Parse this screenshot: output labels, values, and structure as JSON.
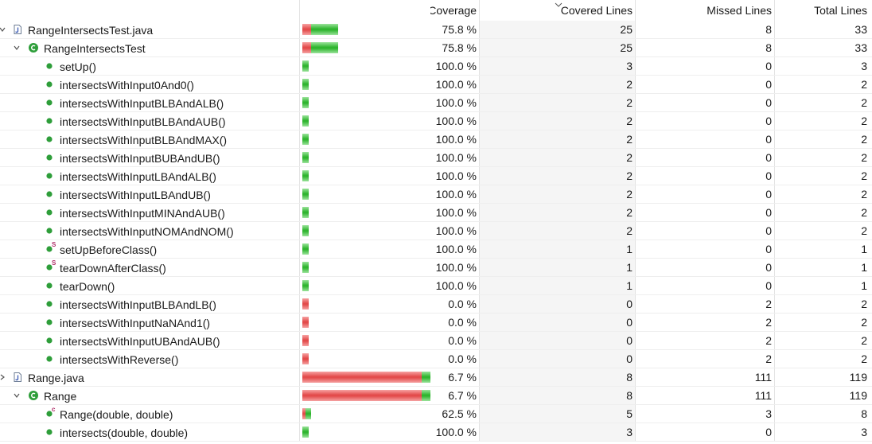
{
  "header": {
    "coverage_label": "Coverage",
    "covered_label": "Covered Lines",
    "missed_label": "Missed Lines",
    "total_label": "Total Lines",
    "sorted_column": "Covered Lines",
    "sort_icon": "chevron-down-icon"
  },
  "colors": {
    "covered": "#2fb52f",
    "missed": "#e34b4b",
    "method_icon": "#2e9e3a",
    "class_icon": "#2e9e3a"
  },
  "rows": [
    {
      "name": "RangeIntersectsTest.java",
      "kind": "file",
      "depth": 0,
      "expanded": true,
      "bar_units": 33,
      "coverage": 0.758,
      "coverage_text": "75.8 %",
      "covered": "25",
      "missed": "8",
      "total": "33"
    },
    {
      "name": "RangeIntersectsTest",
      "kind": "class",
      "depth": 1,
      "expanded": true,
      "bar_units": 33,
      "coverage": 0.758,
      "coverage_text": "75.8 %",
      "covered": "25",
      "missed": "8",
      "total": "33"
    },
    {
      "name": "setUp()",
      "kind": "method",
      "depth": 2,
      "bar_units": 3,
      "coverage": 1.0,
      "coverage_text": "100.0 %",
      "covered": "3",
      "missed": "0",
      "total": "3"
    },
    {
      "name": "intersectsWithInput0And0()",
      "kind": "method",
      "depth": 2,
      "bar_units": 2,
      "coverage": 1.0,
      "coverage_text": "100.0 %",
      "covered": "2",
      "missed": "0",
      "total": "2"
    },
    {
      "name": "intersectsWithInputBLBAndALB()",
      "kind": "method",
      "depth": 2,
      "bar_units": 2,
      "coverage": 1.0,
      "coverage_text": "100.0 %",
      "covered": "2",
      "missed": "0",
      "total": "2"
    },
    {
      "name": "intersectsWithInputBLBAndAUB()",
      "kind": "method",
      "depth": 2,
      "bar_units": 2,
      "coverage": 1.0,
      "coverage_text": "100.0 %",
      "covered": "2",
      "missed": "0",
      "total": "2"
    },
    {
      "name": "intersectsWithInputBLBAndMAX()",
      "kind": "method",
      "depth": 2,
      "bar_units": 2,
      "coverage": 1.0,
      "coverage_text": "100.0 %",
      "covered": "2",
      "missed": "0",
      "total": "2"
    },
    {
      "name": "intersectsWithInputBUBAndUB()",
      "kind": "method",
      "depth": 2,
      "bar_units": 2,
      "coverage": 1.0,
      "coverage_text": "100.0 %",
      "covered": "2",
      "missed": "0",
      "total": "2"
    },
    {
      "name": "intersectsWithInputLBAndALB()",
      "kind": "method",
      "depth": 2,
      "bar_units": 2,
      "coverage": 1.0,
      "coverage_text": "100.0 %",
      "covered": "2",
      "missed": "0",
      "total": "2"
    },
    {
      "name": "intersectsWithInputLBAndUB()",
      "kind": "method",
      "depth": 2,
      "bar_units": 2,
      "coverage": 1.0,
      "coverage_text": "100.0 %",
      "covered": "2",
      "missed": "0",
      "total": "2"
    },
    {
      "name": "intersectsWithInputMINAndAUB()",
      "kind": "method",
      "depth": 2,
      "bar_units": 2,
      "coverage": 1.0,
      "coverage_text": "100.0 %",
      "covered": "2",
      "missed": "0",
      "total": "2"
    },
    {
      "name": "intersectsWithInputNOMAndNOM()",
      "kind": "method",
      "depth": 2,
      "bar_units": 2,
      "coverage": 1.0,
      "coverage_text": "100.0 %",
      "covered": "2",
      "missed": "0",
      "total": "2"
    },
    {
      "name": "setUpBeforeClass()",
      "kind": "static_method",
      "depth": 2,
      "bar_units": 1,
      "coverage": 1.0,
      "coverage_text": "100.0 %",
      "covered": "1",
      "missed": "0",
      "total": "1"
    },
    {
      "name": "tearDownAfterClass()",
      "kind": "static_method",
      "depth": 2,
      "bar_units": 1,
      "coverage": 1.0,
      "coverage_text": "100.0 %",
      "covered": "1",
      "missed": "0",
      "total": "1"
    },
    {
      "name": "tearDown()",
      "kind": "method",
      "depth": 2,
      "bar_units": 1,
      "coverage": 1.0,
      "coverage_text": "100.0 %",
      "covered": "1",
      "missed": "0",
      "total": "1"
    },
    {
      "name": "intersectsWithInputBLBAndLB()",
      "kind": "method",
      "depth": 2,
      "bar_units": 2,
      "coverage": 0.0,
      "coverage_text": "0.0 %",
      "covered": "0",
      "missed": "2",
      "total": "2"
    },
    {
      "name": "intersectsWithInputNaNAnd1()",
      "kind": "method",
      "depth": 2,
      "bar_units": 2,
      "coverage": 0.0,
      "coverage_text": "0.0 %",
      "covered": "0",
      "missed": "2",
      "total": "2"
    },
    {
      "name": "intersectsWithInputUBAndAUB()",
      "kind": "method",
      "depth": 2,
      "bar_units": 2,
      "coverage": 0.0,
      "coverage_text": "0.0 %",
      "covered": "0",
      "missed": "2",
      "total": "2"
    },
    {
      "name": "intersectsWithReverse()",
      "kind": "method",
      "depth": 2,
      "bar_units": 2,
      "coverage": 0.0,
      "coverage_text": "0.0 %",
      "covered": "0",
      "missed": "2",
      "total": "2"
    },
    {
      "name": "Range.java",
      "kind": "file",
      "depth": 0,
      "expanded": false,
      "bar_units": 119,
      "coverage": 0.067,
      "coverage_text": "6.7 %",
      "covered": "8",
      "missed": "111",
      "total": "119"
    },
    {
      "name": "Range",
      "kind": "class",
      "depth": 1,
      "expanded": true,
      "bar_units": 119,
      "coverage": 0.067,
      "coverage_text": "6.7 %",
      "covered": "8",
      "missed": "111",
      "total": "119"
    },
    {
      "name": "Range(double, double)",
      "kind": "constructor",
      "depth": 2,
      "bar_units": 8,
      "coverage": 0.625,
      "coverage_text": "62.5 %",
      "covered": "5",
      "missed": "3",
      "total": "8"
    },
    {
      "name": "intersects(double, double)",
      "kind": "method",
      "depth": 2,
      "bar_units": 3,
      "coverage": 1.0,
      "coverage_text": "100.0 %",
      "covered": "3",
      "missed": "0",
      "total": "3"
    }
  ]
}
